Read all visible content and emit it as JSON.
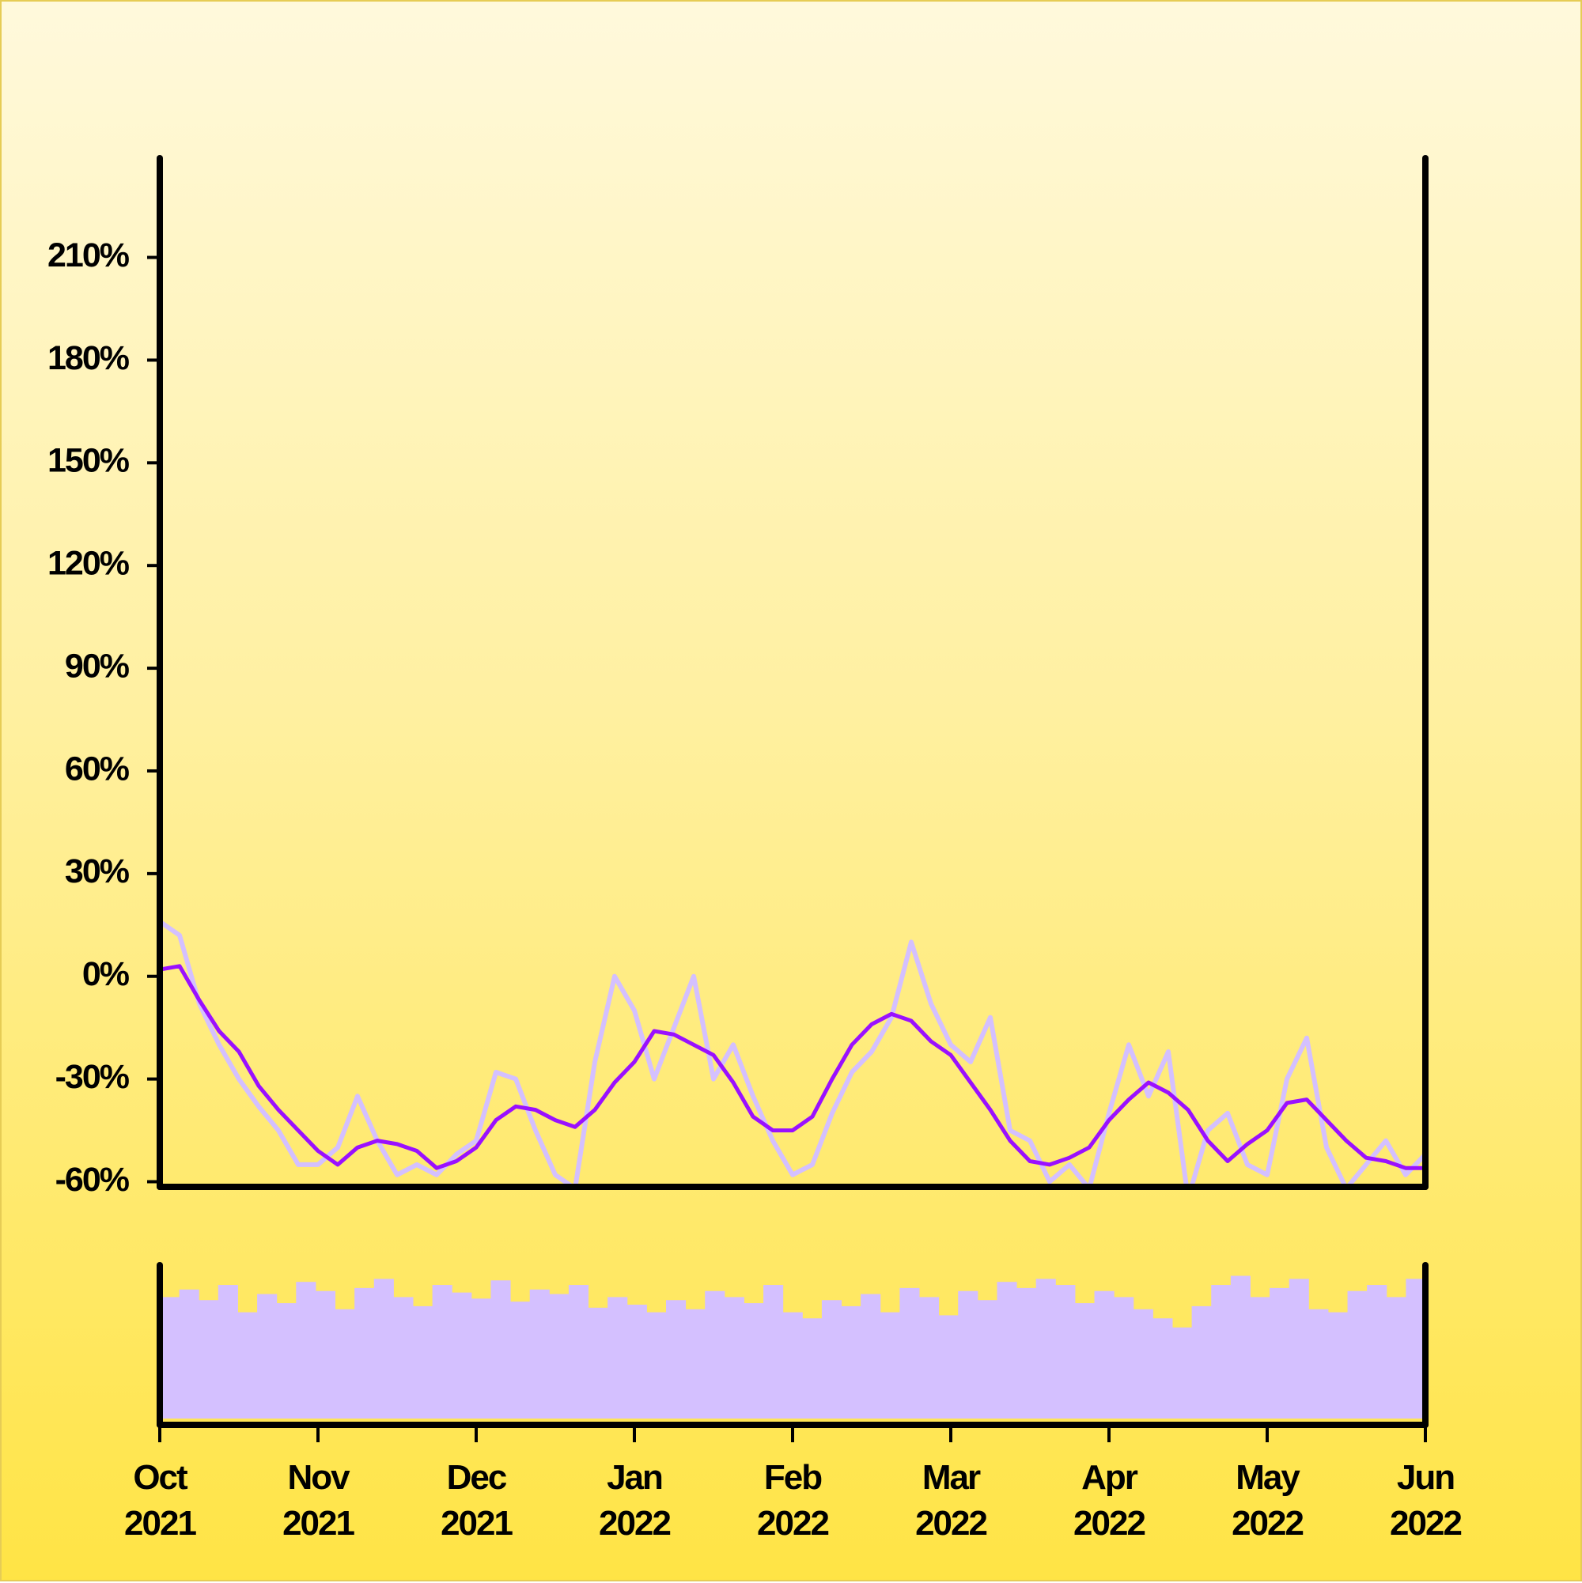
{
  "chart_data": [
    {
      "type": "line",
      "xlim": [
        0,
        8
      ],
      "ylim": [
        -61.5,
        239
      ],
      "yticks": [
        {
          "value": -60,
          "label": "-60%"
        },
        {
          "value": -30,
          "label": "-30%"
        },
        {
          "value": 0,
          "label": "0%"
        },
        {
          "value": 30,
          "label": "30%"
        },
        {
          "value": 60,
          "label": "60%"
        },
        {
          "value": 90,
          "label": "90%"
        },
        {
          "value": 120,
          "label": "120%"
        },
        {
          "value": 150,
          "label": "150%"
        },
        {
          "value": 180,
          "label": "180%"
        },
        {
          "value": 210,
          "label": "210%"
        }
      ],
      "series": [
        {
          "color": "#d4c0ff",
          "values": [
            16,
            12,
            -8,
            -20,
            -30,
            -38,
            -45,
            -55,
            -55,
            -50,
            -35,
            -48,
            -58,
            -55,
            -58,
            -52,
            -48,
            -28,
            -30,
            -45,
            -58,
            -62,
            -25,
            0,
            -10,
            -30,
            -15,
            0,
            -30,
            -20,
            -35,
            -48,
            -58,
            -55,
            -40,
            -28,
            -22,
            -12,
            10,
            -8,
            -20,
            -25,
            -12,
            -45,
            -48,
            -60,
            -55,
            -62,
            -40,
            -20,
            -35,
            -22,
            -65,
            -45,
            -40,
            -55,
            -58,
            -30,
            -18,
            -50,
            -62,
            -55,
            -48,
            -58,
            -52
          ]
        },
        {
          "color": "#9a10ff",
          "values": [
            2,
            3,
            -7,
            -16,
            -22,
            -32,
            -39,
            -45,
            -51,
            -55,
            -50,
            -48,
            -49,
            -51,
            -56,
            -54,
            -50,
            -42,
            -38,
            -39,
            -42,
            -44,
            -39,
            -31,
            -25,
            -16,
            -17,
            -20,
            -23,
            -31,
            -41,
            -45,
            -45,
            -41,
            -30,
            -20,
            -14,
            -11,
            -13,
            -19,
            -23,
            -31,
            -39,
            -48,
            -54,
            -55,
            -53,
            -50,
            -42,
            -36,
            -31,
            -34,
            -39,
            -48,
            -54,
            -49,
            -45,
            -37,
            -36,
            -42,
            -48,
            -53,
            -54,
            -56,
            -56
          ]
        }
      ]
    },
    {
      "type": "bar",
      "color": "#d4c0ff",
      "ylim": [
        0,
        100
      ],
      "xlim": [
        0,
        8
      ],
      "xticks": [
        {
          "value": 0,
          "label": "Oct 2021"
        },
        {
          "value": 1,
          "label": "Nov 2021"
        },
        {
          "value": 2,
          "label": "Dec 2021"
        },
        {
          "value": 3,
          "label": "Jan 2022"
        },
        {
          "value": 4,
          "label": "Feb 2022"
        },
        {
          "value": 5,
          "label": "Mar 2022"
        },
        {
          "value": 6,
          "label": "Apr 2022"
        },
        {
          "value": 7,
          "label": "May 2022"
        },
        {
          "value": 8,
          "label": "Jun 2022"
        }
      ],
      "values": [
        80,
        85,
        78,
        88,
        70,
        82,
        76,
        90,
        84,
        72,
        86,
        92,
        80,
        74,
        88,
        83,
        79,
        91,
        77,
        85,
        82,
        88,
        73,
        80,
        75,
        70,
        78,
        72,
        84,
        80,
        76,
        88,
        70,
        66,
        78,
        74,
        82,
        70,
        86,
        80,
        68,
        84,
        78,
        90,
        86,
        92,
        88,
        76,
        84,
        80,
        72,
        66,
        60,
        74,
        88,
        94,
        80,
        86,
        92,
        72,
        70,
        84,
        88,
        80,
        92
      ]
    }
  ]
}
